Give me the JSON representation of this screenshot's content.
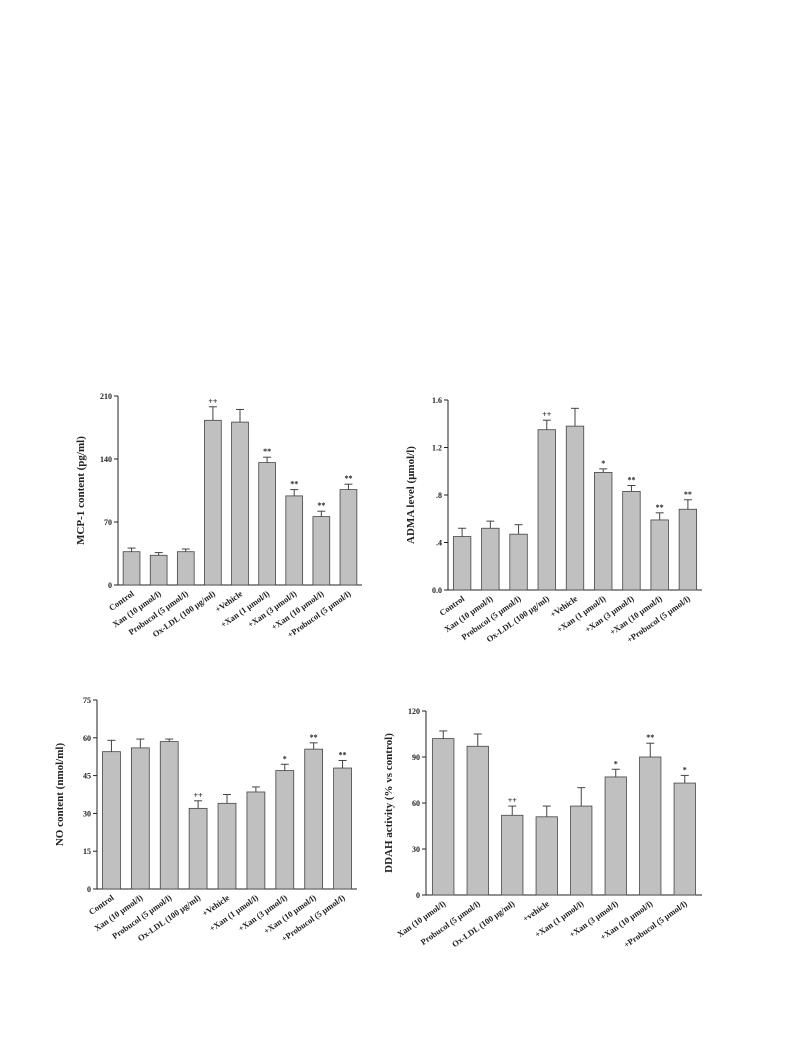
{
  "chart_data": [
    {
      "type": "bar",
      "ylabel": "MCP-1 content (pg/ml)",
      "color": "#c0c0c0",
      "categories": [
        "Control",
        "Xan (10 μmol/l)",
        "Probucol (5 μmol/l)",
        "Ox-LDL (100 μg/ml)",
        "+Vehicle",
        "+Xan (1 μmol/l)",
        "+Xan (3 μmol/l)",
        "+Xan (10 μmol/l)",
        "+Probucol (5 μmol/l)"
      ],
      "values": [
        37,
        33,
        37,
        183,
        181,
        136,
        99,
        76,
        106
      ],
      "errors": [
        4,
        3,
        3,
        15,
        14,
        6,
        7,
        6,
        6
      ],
      "annotations": [
        null,
        null,
        null,
        "++",
        null,
        "**",
        "**",
        "**",
        "**"
      ],
      "ylim": [
        0,
        210
      ],
      "yticks": [
        0,
        70,
        140,
        210
      ]
    },
    {
      "type": "bar",
      "ylabel": "ADMA level (μmol/l)",
      "color": "#c0c0c0",
      "categories": [
        "Control",
        "Xan (10 μmol/l)",
        "Probucol (5 μmol/l)",
        "Ox-LDL (100 μg/ml)",
        "+Vehicle",
        "+Xan (1 μmol/l)",
        "+Xan (3 μmol/l)",
        "+Xan (10 μmol/l)",
        "+Probucol (5 μmol/l)"
      ],
      "values": [
        0.45,
        0.52,
        0.47,
        1.35,
        1.38,
        0.99,
        0.83,
        0.59,
        0.68
      ],
      "errors": [
        0.07,
        0.06,
        0.08,
        0.08,
        0.15,
        0.03,
        0.05,
        0.06,
        0.08
      ],
      "annotations": [
        null,
        null,
        null,
        "++",
        null,
        "*",
        "**",
        "**",
        "**"
      ],
      "ylim": [
        0,
        1.6
      ],
      "yticks": [
        {
          "value": 0,
          "label": "0.0"
        },
        {
          "value": 0.4,
          "label": ".4"
        },
        {
          "value": 0.8,
          "label": ".8"
        },
        {
          "value": 1.2,
          "label": "1.2"
        },
        {
          "value": 1.6,
          "label": "1.6"
        }
      ]
    },
    {
      "type": "bar",
      "ylabel": "NO content (nmol/ml)",
      "color": "#c0c0c0",
      "categories": [
        "Control",
        "Xan (10 μmol/l)",
        "Probucol (5 μmol/l)",
        "Ox-LDL (100 μg/ml)",
        "+Vehicle",
        "+Xan (1 μmol/l)",
        "+Xan (3 μmol/l)",
        "+Xan (10 μmol/l)",
        "+Probucol (5 μmol/l)"
      ],
      "values": [
        54.5,
        56,
        58.5,
        32,
        34,
        38.5,
        47,
        55.5,
        48
      ],
      "errors": [
        4.5,
        3.5,
        1,
        3,
        3.5,
        2,
        2.5,
        2.5,
        3
      ],
      "annotations": [
        null,
        null,
        null,
        "++",
        null,
        null,
        "*",
        "**",
        "**"
      ],
      "ylim": [
        0,
        75
      ],
      "yticks": [
        0,
        15,
        30,
        45,
        60,
        75
      ]
    },
    {
      "type": "bar",
      "ylabel": "DDAH activity (% vs control)",
      "color": "#c0c0c0",
      "categories": [
        "Xan (10 μmol/l)",
        "Probucol (5 μmol/l)",
        "Ox-LDL (100 μg/ml)",
        "+vehicle",
        "+Xan (1 μmol/l)",
        "+Xan (3 μmol/l)",
        "+Xan (10 μmol/l)",
        "+Probucol (5 μmol/l)"
      ],
      "values": [
        102,
        97,
        52,
        51,
        58,
        77,
        90,
        73
      ],
      "errors": [
        5,
        8,
        6,
        7,
        12,
        5,
        9,
        5
      ],
      "annotations": [
        null,
        null,
        "++",
        null,
        null,
        "*",
        "**",
        "*"
      ],
      "ylim": [
        0,
        120
      ],
      "yticks": [
        0,
        30,
        60,
        90,
        120
      ]
    }
  ]
}
